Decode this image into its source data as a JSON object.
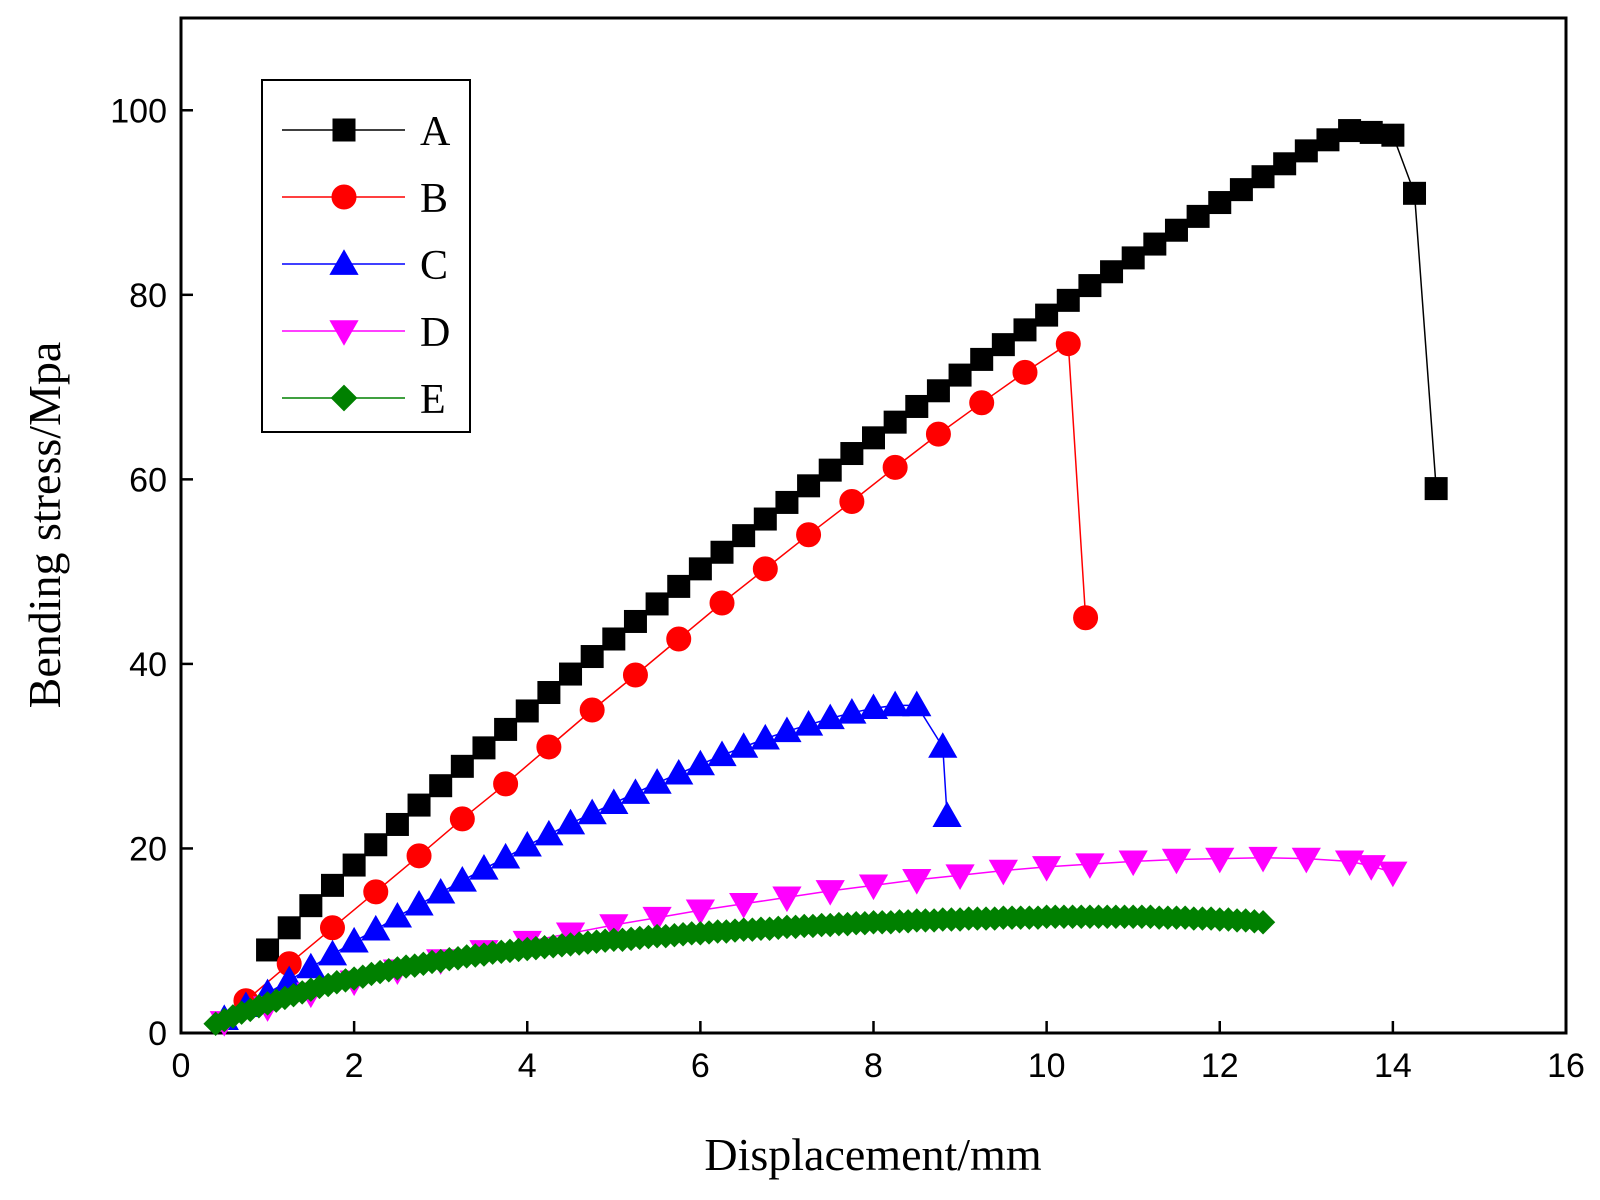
{
  "chart_data": {
    "type": "line",
    "title": "",
    "xlabel": "Displacement/mm",
    "ylabel": "Bending stress/Mpa",
    "xlim": [
      0,
      16
    ],
    "ylim": [
      0,
      110
    ],
    "xticks": [
      0,
      2,
      4,
      6,
      8,
      10,
      12,
      14,
      16
    ],
    "yticks": [
      0,
      20,
      40,
      60,
      80,
      100
    ],
    "grid": false,
    "legend_position": "top-left",
    "series": [
      {
        "name": "A",
        "marker": "square",
        "color": "#000000",
        "x": [
          1.0,
          1.25,
          1.5,
          1.75,
          2.0,
          2.25,
          2.5,
          2.75,
          3.0,
          3.25,
          3.5,
          3.75,
          4.0,
          4.25,
          4.5,
          4.75,
          5.0,
          5.25,
          5.5,
          5.75,
          6.0,
          6.25,
          6.5,
          6.75,
          7.0,
          7.25,
          7.5,
          7.75,
          8.0,
          8.25,
          8.5,
          8.75,
          9.0,
          9.25,
          9.5,
          9.75,
          10.0,
          10.25,
          10.5,
          10.75,
          11.0,
          11.25,
          11.5,
          11.75,
          12.0,
          12.25,
          12.5,
          12.75,
          13.0,
          13.25,
          13.5,
          13.75,
          14.0,
          14.25,
          14.5
        ],
        "y": [
          9.0,
          11.4,
          13.8,
          16.0,
          18.2,
          20.4,
          22.6,
          24.7,
          26.8,
          28.9,
          30.9,
          32.9,
          34.9,
          36.9,
          38.9,
          40.8,
          42.7,
          44.6,
          46.5,
          48.4,
          50.3,
          52.1,
          53.9,
          55.7,
          57.5,
          59.3,
          61.0,
          62.8,
          64.5,
          66.2,
          67.9,
          69.6,
          71.3,
          73.0,
          74.6,
          76.2,
          77.8,
          79.4,
          81.0,
          82.5,
          84.0,
          85.5,
          87.0,
          88.5,
          90.0,
          91.4,
          92.8,
          94.2,
          95.6,
          96.8,
          97.8,
          97.6,
          97.3,
          91.0,
          59.0
        ]
      },
      {
        "name": "B",
        "marker": "circle",
        "color": "#ff0000",
        "x": [
          0.75,
          1.25,
          1.75,
          2.25,
          2.75,
          3.25,
          3.75,
          4.25,
          4.75,
          5.25,
          5.75,
          6.25,
          6.75,
          7.25,
          7.75,
          8.25,
          8.75,
          9.25,
          9.75,
          10.25,
          10.45
        ],
        "y": [
          3.5,
          7.5,
          11.4,
          15.3,
          19.2,
          23.2,
          27.0,
          31.0,
          35.0,
          38.8,
          42.7,
          46.6,
          50.3,
          54.0,
          57.6,
          61.3,
          64.9,
          68.3,
          71.6,
          74.7,
          45.0
        ]
      },
      {
        "name": "C",
        "marker": "triangle-up",
        "color": "#0000ff",
        "x": [
          0.5,
          0.75,
          1.0,
          1.25,
          1.5,
          1.75,
          2.0,
          2.25,
          2.5,
          2.75,
          3.0,
          3.25,
          3.5,
          3.75,
          4.0,
          4.25,
          4.5,
          4.75,
          5.0,
          5.25,
          5.5,
          5.75,
          6.0,
          6.25,
          6.5,
          6.75,
          7.0,
          7.25,
          7.5,
          7.75,
          8.0,
          8.25,
          8.5,
          8.8,
          8.85
        ],
        "y": [
          1.5,
          2.9,
          4.3,
          5.7,
          7.1,
          8.5,
          9.9,
          11.2,
          12.6,
          13.9,
          15.2,
          16.5,
          17.8,
          19.0,
          20.3,
          21.5,
          22.7,
          23.8,
          24.9,
          26.0,
          27.1,
          28.1,
          29.1,
          30.1,
          31.0,
          31.9,
          32.7,
          33.4,
          34.1,
          34.7,
          35.2,
          35.5,
          35.5,
          31.0,
          23.5
        ]
      },
      {
        "name": "D",
        "marker": "triangle-down",
        "color": "#ff00ff",
        "x": [
          0.5,
          1.0,
          1.5,
          2.0,
          2.5,
          3.0,
          3.5,
          4.0,
          4.5,
          5.0,
          5.5,
          6.0,
          6.5,
          7.0,
          7.5,
          8.0,
          8.5,
          9.0,
          9.5,
          10.0,
          10.5,
          11.0,
          11.5,
          12.0,
          12.5,
          13.0,
          13.5,
          13.75,
          14.0
        ],
        "y": [
          1.2,
          2.8,
          4.3,
          5.6,
          6.8,
          7.9,
          8.9,
          9.9,
          10.8,
          11.7,
          12.5,
          13.3,
          14.0,
          14.7,
          15.4,
          16.0,
          16.6,
          17.1,
          17.6,
          18.0,
          18.3,
          18.6,
          18.8,
          18.9,
          19.0,
          18.9,
          18.6,
          18.1,
          17.4
        ]
      },
      {
        "name": "E",
        "marker": "diamond",
        "color": "#008000",
        "x": [
          0.4,
          0.5,
          0.6,
          0.7,
          0.8,
          0.9,
          1.0,
          1.1,
          1.2,
          1.3,
          1.4,
          1.5,
          1.6,
          1.7,
          1.8,
          1.9,
          2.0,
          2.1,
          2.2,
          2.3,
          2.4,
          2.5,
          2.6,
          2.7,
          2.8,
          2.9,
          3.0,
          3.1,
          3.2,
          3.3,
          3.4,
          3.5,
          3.6,
          3.7,
          3.8,
          3.9,
          4.0,
          4.1,
          4.2,
          4.3,
          4.4,
          4.5,
          4.6,
          4.7,
          4.8,
          4.9,
          5.0,
          5.1,
          5.2,
          5.3,
          5.4,
          5.5,
          5.6,
          5.7,
          5.8,
          5.9,
          6.0,
          6.1,
          6.2,
          6.3,
          6.4,
          6.5,
          6.6,
          6.7,
          6.8,
          6.9,
          7.0,
          7.1,
          7.2,
          7.3,
          7.4,
          7.5,
          7.6,
          7.7,
          7.8,
          7.9,
          8.0,
          8.1,
          8.2,
          8.3,
          8.4,
          8.5,
          8.6,
          8.7,
          8.8,
          8.9,
          9.0,
          9.1,
          9.2,
          9.3,
          9.4,
          9.5,
          9.6,
          9.7,
          9.8,
          9.9,
          10.0,
          10.1,
          10.2,
          10.3,
          10.4,
          10.5,
          10.6,
          10.7,
          10.8,
          10.9,
          11.0,
          11.1,
          11.2,
          11.3,
          11.4,
          11.5,
          11.6,
          11.7,
          11.8,
          11.9,
          12.0,
          12.1,
          12.2,
          12.3,
          12.4,
          12.5
        ],
        "y": [
          1.0,
          1.4,
          1.8,
          2.2,
          2.5,
          2.9,
          3.2,
          3.5,
          3.8,
          4.1,
          4.4,
          4.7,
          5.0,
          5.2,
          5.5,
          5.7,
          5.9,
          6.1,
          6.4,
          6.6,
          6.8,
          7.0,
          7.2,
          7.3,
          7.5,
          7.7,
          7.8,
          8.0,
          8.1,
          8.3,
          8.4,
          8.5,
          8.7,
          8.8,
          8.9,
          9.0,
          9.1,
          9.2,
          9.3,
          9.4,
          9.5,
          9.6,
          9.7,
          9.8,
          9.9,
          10.0,
          10.1,
          10.1,
          10.2,
          10.3,
          10.4,
          10.5,
          10.5,
          10.6,
          10.7,
          10.8,
          10.8,
          10.9,
          11.0,
          11.0,
          11.1,
          11.2,
          11.2,
          11.3,
          11.3,
          11.4,
          11.5,
          11.5,
          11.6,
          11.6,
          11.7,
          11.7,
          11.8,
          11.8,
          11.9,
          11.9,
          12.0,
          12.0,
          12.0,
          12.1,
          12.1,
          12.2,
          12.2,
          12.2,
          12.3,
          12.3,
          12.3,
          12.4,
          12.4,
          12.4,
          12.4,
          12.5,
          12.5,
          12.5,
          12.5,
          12.5,
          12.6,
          12.6,
          12.6,
          12.6,
          12.6,
          12.6,
          12.6,
          12.6,
          12.6,
          12.6,
          12.6,
          12.6,
          12.6,
          12.5,
          12.5,
          12.5,
          12.5,
          12.4,
          12.4,
          12.4,
          12.3,
          12.3,
          12.2,
          12.2,
          12.1,
          12.0
        ]
      }
    ]
  }
}
